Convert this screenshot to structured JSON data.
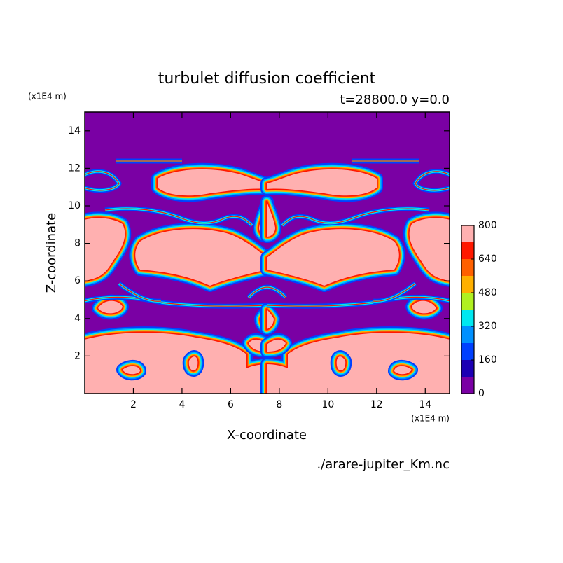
{
  "chart_data": {
    "type": "contour",
    "title": "turbulet diffusion coefficient",
    "subtitle": "t=28800.0 y=0.0",
    "x_label": "X-coordinate",
    "y_label": "Z-coordinate",
    "x_unit": "(x1E4 m)",
    "y_unit": "(x1E4 m)",
    "source": "./arare-jupiter_Km.nc",
    "xlim": [
      0,
      15
    ],
    "ylim": [
      0,
      15
    ],
    "xticks": [
      2,
      4,
      6,
      8,
      10,
      12,
      14
    ],
    "yticks": [
      2,
      4,
      6,
      8,
      10,
      12,
      14
    ],
    "colorbar": {
      "levels": [
        0,
        80,
        160,
        240,
        320,
        400,
        480,
        560,
        640,
        720,
        800
      ],
      "colors": [
        "#7a00a4",
        "#1c00b4",
        "#0040ff",
        "#0090ff",
        "#00e8f0",
        "#b0f020",
        "#ffb000",
        "#ff6000",
        "#ff1800",
        "#ffb0b0"
      ],
      "ticks": [
        0,
        160,
        320,
        480,
        640,
        800
      ]
    }
  }
}
